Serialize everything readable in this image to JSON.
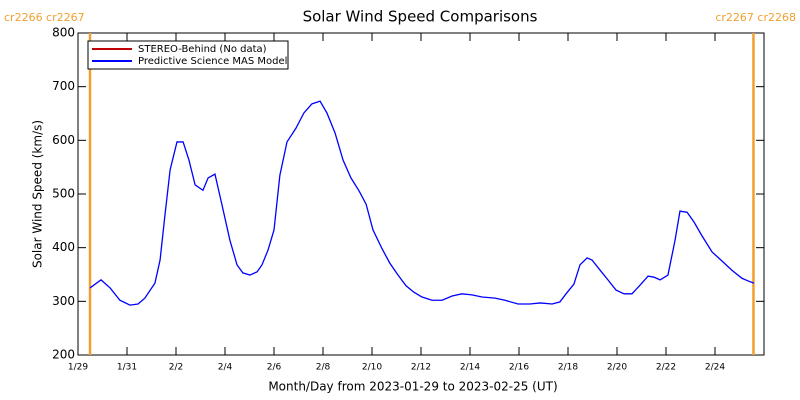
{
  "chart_data": {
    "type": "line",
    "title": "Solar Wind Speed Comparisons",
    "x_label": "Month/Day from 2023-01-29 to 2023-02-25 (UT)",
    "y_label": "Solar Wind Speed (km/s)",
    "xlim": [
      0,
      28
    ],
    "xticks": [
      {
        "value": 0,
        "label": "1/29"
      },
      {
        "value": 2,
        "label": "1/31"
      },
      {
        "value": 4,
        "label": "2/2"
      },
      {
        "value": 6,
        "label": "2/4"
      },
      {
        "value": 8,
        "label": "2/6"
      },
      {
        "value": 10,
        "label": "2/8"
      },
      {
        "value": 12,
        "label": "2/10"
      },
      {
        "value": 14,
        "label": "2/12"
      },
      {
        "value": 16,
        "label": "2/14"
      },
      {
        "value": 18,
        "label": "2/16"
      },
      {
        "value": 20,
        "label": "2/18"
      },
      {
        "value": 22,
        "label": "2/20"
      },
      {
        "value": 24,
        "label": "2/22"
      },
      {
        "value": 26,
        "label": "2/24"
      }
    ],
    "ylim": [
      200,
      800
    ],
    "yticks": [
      200,
      300,
      400,
      500,
      600,
      700,
      800
    ],
    "legend": "upper left",
    "annotations": [
      {
        "x": 0.49,
        "label": "cr2266 cr2267",
        "color": "#f0a030"
      },
      {
        "x": 27.57,
        "label": "cr2267 cr2268",
        "color": "#f0a030"
      }
    ],
    "x": [
      0.49,
      0.94,
      1.31,
      1.71,
      2.12,
      2.45,
      2.73,
      3.14,
      3.35,
      3.55,
      3.76,
      4.04,
      4.29,
      4.53,
      4.78,
      5.1,
      5.31,
      5.59,
      5.88,
      6.2,
      6.49,
      6.73,
      7.02,
      7.31,
      7.51,
      7.76,
      8.0,
      8.24,
      8.53,
      8.9,
      9.22,
      9.55,
      9.88,
      10.16,
      10.49,
      10.82,
      11.14,
      11.47,
      11.76,
      12.04,
      12.41,
      12.73,
      13.06,
      13.39,
      13.71,
      14.04,
      14.45,
      14.86,
      15.27,
      15.67,
      16.08,
      16.49,
      17.02,
      17.43,
      17.96,
      18.45,
      18.86,
      19.35,
      19.67,
      19.92,
      20.24,
      20.49,
      20.78,
      20.98,
      21.31,
      21.63,
      21.96,
      22.29,
      22.61,
      22.94,
      23.27,
      23.51,
      23.76,
      24.08,
      24.37,
      24.57,
      24.86,
      25.14,
      25.47,
      25.88,
      26.29,
      26.69,
      27.1,
      27.35,
      27.59
    ],
    "series": [
      {
        "name": "STEREO-Behind (No data)",
        "color": "#c00000",
        "values": [
          null,
          null,
          null,
          null,
          null,
          null,
          null,
          null,
          null,
          null,
          null,
          null,
          null,
          null,
          null,
          null,
          null,
          null,
          null,
          null,
          null,
          null,
          null,
          null,
          null,
          null,
          null,
          null,
          null,
          null,
          null,
          null,
          null,
          null,
          null,
          null,
          null,
          null,
          null,
          null,
          null,
          null,
          null,
          null,
          null,
          null,
          null,
          null,
          null,
          null,
          null,
          null,
          null,
          null,
          null,
          null,
          null,
          null,
          null,
          null,
          null,
          null,
          null,
          null,
          null,
          null,
          null,
          null,
          null,
          null,
          null,
          null,
          null,
          null,
          null,
          null,
          null,
          null,
          null,
          null,
          null,
          null,
          null,
          null,
          null
        ]
      },
      {
        "name": "Predictive Science MAS Model",
        "color": "#0000ff",
        "values": [
          325,
          340,
          325,
          302,
          293,
          295,
          306,
          334,
          377,
          461,
          545,
          597,
          597,
          563,
          517,
          507,
          530,
          537,
          479,
          414,
          368,
          353,
          349,
          355,
          368,
          396,
          433,
          535,
          597,
          623,
          651,
          668,
          673,
          651,
          614,
          563,
          530,
          506,
          481,
          433,
          398,
          371,
          349,
          329,
          317,
          308,
          302,
          302,
          310,
          314,
          312,
          308,
          306,
          302,
          295,
          295,
          297,
          295,
          299,
          314,
          332,
          368,
          381,
          377,
          358,
          340,
          321,
          314,
          314,
          330,
          347,
          345,
          340,
          349,
          414,
          468,
          466,
          448,
          422,
          392,
          375,
          358,
          343,
          338,
          334
        ]
      }
    ]
  }
}
